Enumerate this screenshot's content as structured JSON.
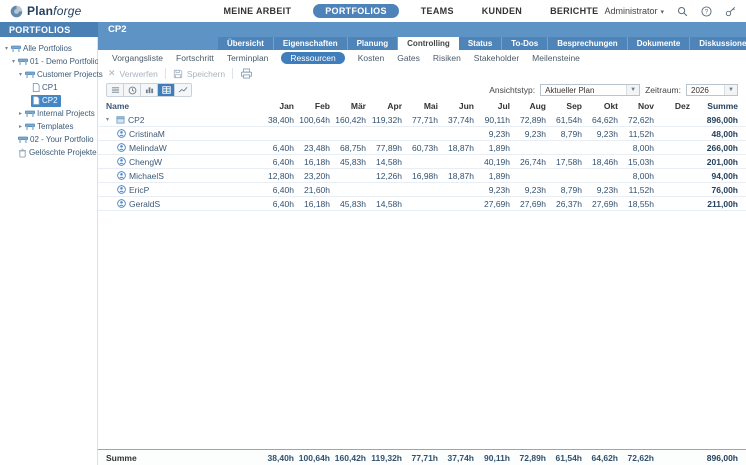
{
  "colors": {
    "accent": "#3f7dbb",
    "band": "#5e93c5",
    "sidebar_header": "#4b80b4",
    "tab_inactive": "#4e84b8",
    "selected_tree": "#4486c6"
  },
  "topbar": {
    "logo_plan": "Plan",
    "logo_forge": "forge",
    "menu": [
      {
        "label": "MEINE ARBEIT",
        "active": false
      },
      {
        "label": "PORTFOLIOS",
        "active": true
      },
      {
        "label": "TEAMS",
        "active": false
      },
      {
        "label": "KUNDEN",
        "active": false
      },
      {
        "label": "BERICHTE",
        "active": false
      }
    ],
    "user": "Administrator",
    "icons": [
      "search-icon",
      "help-icon",
      "key-icon"
    ]
  },
  "sidebar": {
    "title": "PORTFOLIOS",
    "tree": [
      {
        "label": "Alle Portfolios",
        "level": 0,
        "arrow": "down",
        "icon": "portfolio",
        "selected": false
      },
      {
        "label": "01 - Demo Portfolio",
        "level": 1,
        "arrow": "down",
        "icon": "portfolio",
        "selected": false
      },
      {
        "label": "Customer Projects",
        "level": 2,
        "arrow": "down",
        "icon": "portfolio",
        "selected": false
      },
      {
        "label": "CP1",
        "level": 3,
        "arrow": "none",
        "icon": "project",
        "selected": false
      },
      {
        "label": "CP2",
        "level": 3,
        "arrow": "none",
        "icon": "project",
        "selected": true
      },
      {
        "label": "Internal Projects",
        "level": 2,
        "arrow": "right",
        "icon": "portfolio",
        "selected": false
      },
      {
        "label": "Templates",
        "level": 2,
        "arrow": "right",
        "icon": "portfolio",
        "selected": false
      },
      {
        "label": "02 - Your Portfolio",
        "level": 1,
        "arrow": "none",
        "icon": "portfolio",
        "selected": false
      },
      {
        "label": "Gelöschte Projekte",
        "level": 1,
        "arrow": "none",
        "icon": "trash",
        "selected": false
      }
    ]
  },
  "main": {
    "title": "CP2",
    "tabs": [
      {
        "label": "Übersicht",
        "active": false
      },
      {
        "label": "Eigenschaften",
        "active": false
      },
      {
        "label": "Planung",
        "active": false
      },
      {
        "label": "Controlling",
        "active": true
      },
      {
        "label": "Status",
        "active": false
      },
      {
        "label": "To-Dos",
        "active": false
      },
      {
        "label": "Besprechungen",
        "active": false
      },
      {
        "label": "Dokumente",
        "active": false
      },
      {
        "label": "Diskussionen",
        "active": false
      },
      {
        "label": "Stream",
        "active": false
      }
    ],
    "subtabs": [
      {
        "label": "Vorgangsliste",
        "active": false
      },
      {
        "label": "Fortschritt",
        "active": false
      },
      {
        "label": "Terminplan",
        "active": false
      },
      {
        "label": "Ressourcen",
        "active": true
      },
      {
        "label": "Kosten",
        "active": false
      },
      {
        "label": "Gates",
        "active": false
      },
      {
        "label": "Risiken",
        "active": false
      },
      {
        "label": "Stakeholder",
        "active": false
      },
      {
        "label": "Meilensteine",
        "active": false
      }
    ],
    "toolbar": {
      "discard": "Verwerfen",
      "save": "Speichern"
    },
    "view_toggles": [
      {
        "name": "list-icon",
        "active": false
      },
      {
        "name": "clock-icon",
        "active": false
      },
      {
        "name": "bar-chart-icon",
        "active": false
      },
      {
        "name": "table-icon",
        "active": true
      },
      {
        "name": "line-chart-icon",
        "active": false
      }
    ],
    "controls": {
      "viewtype_label": "Ansichtstyp:",
      "viewtype_value": "Aktueller Plan",
      "period_label": "Zeitraum:",
      "period_value": "2026"
    }
  },
  "table": {
    "columns": [
      "Name",
      "Jan",
      "Feb",
      "Mär",
      "Apr",
      "Mai",
      "Jun",
      "Jul",
      "Aug",
      "Sep",
      "Okt",
      "Nov",
      "Dez",
      "Summe"
    ],
    "rows": [
      {
        "name": "CP2",
        "type": "project",
        "expanded": true,
        "values": [
          "38,40h",
          "100,64h",
          "160,42h",
          "119,32h",
          "77,71h",
          "37,74h",
          "90,11h",
          "72,89h",
          "61,54h",
          "64,62h",
          "72,62h",
          "",
          "896,00h"
        ]
      },
      {
        "name": "CristinaM",
        "type": "person",
        "values": [
          "",
          "",
          "",
          "",
          "",
          "",
          "9,23h",
          "9,23h",
          "8,79h",
          "9,23h",
          "11,52h",
          "",
          "48,00h"
        ]
      },
      {
        "name": "MelindaW",
        "type": "person",
        "values": [
          "6,40h",
          "23,48h",
          "68,75h",
          "77,89h",
          "60,73h",
          "18,87h",
          "1,89h",
          "",
          "",
          "",
          "8,00h",
          "",
          "266,00h"
        ]
      },
      {
        "name": "ChengW",
        "type": "person",
        "values": [
          "6,40h",
          "16,18h",
          "45,83h",
          "14,58h",
          "",
          "",
          "40,19h",
          "26,74h",
          "17,58h",
          "18,46h",
          "15,03h",
          "",
          "201,00h"
        ]
      },
      {
        "name": "MichaelS",
        "type": "person",
        "values": [
          "12,80h",
          "23,20h",
          "",
          "12,26h",
          "16,98h",
          "18,87h",
          "1,89h",
          "",
          "",
          "",
          "8,00h",
          "",
          "94,00h"
        ]
      },
      {
        "name": "EricP",
        "type": "person",
        "values": [
          "6,40h",
          "21,60h",
          "",
          "",
          "",
          "",
          "9,23h",
          "9,23h",
          "8,79h",
          "9,23h",
          "11,52h",
          "",
          "76,00h"
        ]
      },
      {
        "name": "GeraldS",
        "type": "person",
        "values": [
          "6,40h",
          "16,18h",
          "45,83h",
          "14,58h",
          "",
          "",
          "27,69h",
          "27,69h",
          "26,37h",
          "27,69h",
          "18,55h",
          "",
          "211,00h"
        ]
      }
    ],
    "footer": {
      "label": "Summe",
      "values": [
        "38,40h",
        "100,64h",
        "160,42h",
        "119,32h",
        "77,71h",
        "37,74h",
        "90,11h",
        "72,89h",
        "61,54h",
        "64,62h",
        "72,62h",
        "",
        "896,00h"
      ]
    }
  }
}
